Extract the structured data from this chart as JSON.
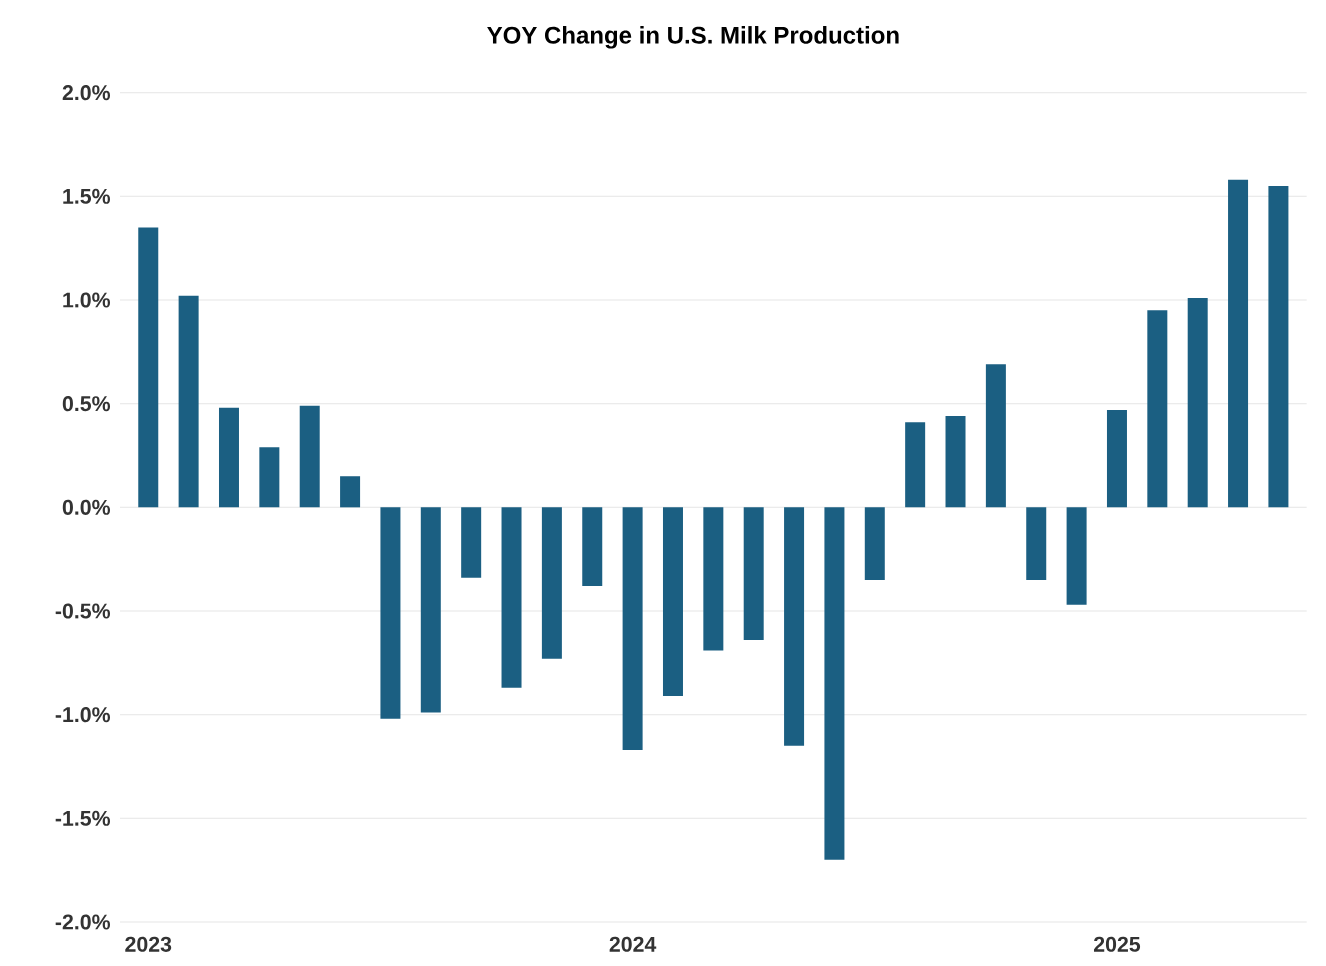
{
  "chart_data": {
    "type": "bar",
    "title": "YOY Change in U.S. Milk Production",
    "categories": [
      "2023",
      null,
      null,
      null,
      null,
      null,
      null,
      null,
      null,
      null,
      null,
      null,
      "2024",
      null,
      null,
      null,
      null,
      null,
      null,
      null,
      null,
      null,
      null,
      null,
      "2025",
      null,
      null,
      null,
      null
    ],
    "values": [
      1.35,
      1.02,
      0.48,
      0.29,
      0.49,
      0.15,
      -1.02,
      -0.99,
      -0.34,
      -0.87,
      -0.73,
      -0.38,
      -1.17,
      -0.91,
      -0.69,
      -0.64,
      -1.15,
      -1.7,
      -0.35,
      0.41,
      0.44,
      0.69,
      -0.35,
      -0.47,
      0.47,
      0.95,
      1.01,
      1.58,
      1.55
    ],
    "color": "#1b5f82",
    "ylim": [
      -2.0,
      2.0
    ],
    "yticks": [
      {
        "value": -2.0,
        "label": "-2.0%"
      },
      {
        "value": -1.5,
        "label": "-1.5%"
      },
      {
        "value": -1.0,
        "label": "-1.0%"
      },
      {
        "value": -0.5,
        "label": "-0.5%"
      },
      {
        "value": 0.0,
        "label": "0.0%"
      },
      {
        "value": 0.5,
        "label": "0.5%"
      },
      {
        "value": 1.0,
        "label": "1.0%"
      },
      {
        "value": 1.5,
        "label": "1.5%"
      },
      {
        "value": 2.0,
        "label": "2.0%"
      }
    ],
    "grid": "y"
  }
}
